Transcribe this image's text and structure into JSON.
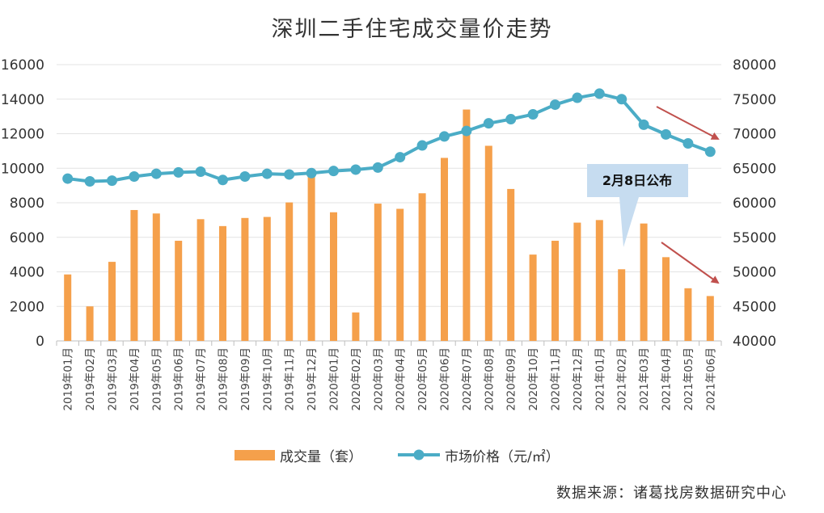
{
  "chart_data": {
    "type": "bar",
    "title": "深圳二手住宅成交量价走势",
    "categories": [
      "2019年01月",
      "2019年02月",
      "2019年03月",
      "2019年04月",
      "2019年05月",
      "2019年06月",
      "2019年07月",
      "2019年08月",
      "2019年09月",
      "2019年10月",
      "2019年11月",
      "2019年12月",
      "2020年01月",
      "2020年02月",
      "2020年03月",
      "2020年04月",
      "2020年05月",
      "2020年06月",
      "2020年07月",
      "2020年08月",
      "2020年09月",
      "2020年10月",
      "2020年11月",
      "2020年12月",
      "2021年01月",
      "2021年02月",
      "2021年03月",
      "2021年04月",
      "2021年05月",
      "2021年06月"
    ],
    "series": [
      {
        "name": "成交量（套）",
        "type": "bar",
        "axis": "left",
        "color": "#F5A04B",
        "values": [
          3850,
          2000,
          4580,
          7580,
          7380,
          5800,
          7050,
          6650,
          7120,
          7180,
          8020,
          9700,
          7450,
          1650,
          7950,
          7650,
          8550,
          10600,
          13400,
          11300,
          8800,
          5000,
          5800,
          6850,
          7000,
          4150,
          6800,
          4850,
          3050,
          2600
        ]
      },
      {
        "name": "市场价格（元/㎡）",
        "type": "line",
        "axis": "right",
        "color": "#4BACC6",
        "values": [
          63500,
          63100,
          63200,
          63800,
          64200,
          64400,
          64500,
          63300,
          63800,
          64200,
          64100,
          64300,
          64600,
          64800,
          65100,
          66600,
          68300,
          69600,
          70400,
          71500,
          72100,
          72800,
          74200,
          75200,
          75800,
          75000,
          71300,
          69900,
          68600,
          67400
        ]
      }
    ],
    "ylim_left": [
      0,
      16000
    ],
    "yticks_left": [
      "0",
      "2000",
      "4000",
      "6000",
      "8000",
      "10000",
      "12000",
      "14000",
      "16000"
    ],
    "ylim_right": [
      40000,
      80000
    ],
    "yticks_right": [
      "40000",
      "45000",
      "50000",
      "55000",
      "60000",
      "65000",
      "70000",
      "75000",
      "80000"
    ],
    "grid": true,
    "legend_position": "bottom",
    "annotations": [
      {
        "text": "2月8日公布",
        "target": "2021年02月"
      }
    ],
    "source": "数据来源：诸葛找房数据研究中心"
  }
}
